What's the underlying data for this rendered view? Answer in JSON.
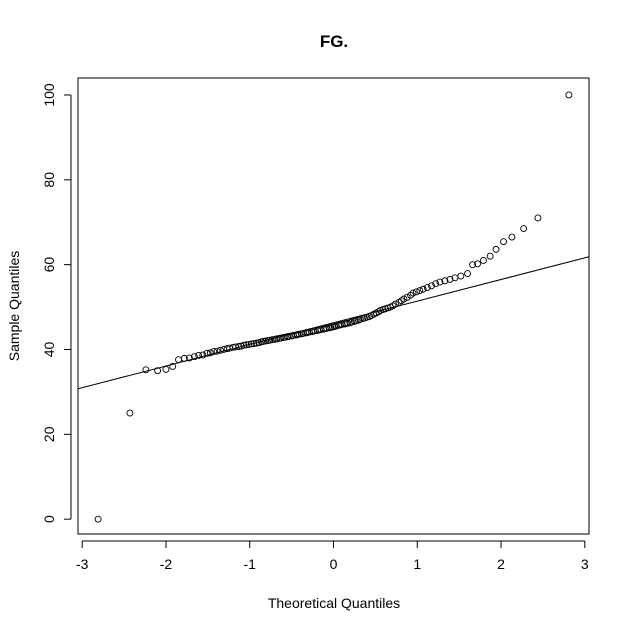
{
  "chart_data": {
    "type": "scatter",
    "title": "FG.",
    "xlabel": "Theoretical Quantiles",
    "ylabel": "Sample Quantiles",
    "xlim": [
      -3.05,
      3.05
    ],
    "ylim": [
      -3.5,
      104
    ],
    "x_ticks": [
      -3,
      -2,
      -1,
      0,
      1,
      2,
      3
    ],
    "y_ticks": [
      0,
      20,
      40,
      60,
      80,
      100
    ],
    "grid": false,
    "reference_line": {
      "slope": 5.1,
      "intercept": 46.3
    },
    "points": [
      [
        -2.81,
        0
      ],
      [
        -2.43,
        25
      ],
      [
        -2.24,
        35.2
      ],
      [
        -2.1,
        35.0
      ],
      [
        -2.0,
        35.3
      ],
      [
        -1.92,
        36.0
      ],
      [
        -1.85,
        37.6
      ],
      [
        -1.78,
        37.9
      ],
      [
        -1.72,
        38.0
      ],
      [
        -1.66,
        38.3
      ],
      [
        -1.61,
        38.6
      ],
      [
        -1.56,
        38.7
      ],
      [
        -1.51,
        39.1
      ],
      [
        -1.47,
        39.2
      ],
      [
        -1.43,
        39.5
      ],
      [
        -1.39,
        39.6
      ],
      [
        -1.35,
        39.8
      ],
      [
        -1.31,
        40.0
      ],
      [
        -1.27,
        40.2
      ],
      [
        -1.24,
        40.3
      ],
      [
        -1.2,
        40.5
      ],
      [
        -1.17,
        40.6
      ],
      [
        -1.13,
        40.7
      ],
      [
        -1.1,
        40.8
      ],
      [
        -1.07,
        41.0
      ],
      [
        -1.04,
        41.1
      ],
      [
        -1.01,
        41.2
      ],
      [
        -0.98,
        41.3
      ],
      [
        -0.95,
        41.4
      ],
      [
        -0.92,
        41.5
      ],
      [
        -0.89,
        41.6
      ],
      [
        -0.86,
        41.8
      ],
      [
        -0.84,
        41.9
      ],
      [
        -0.81,
        42.0
      ],
      [
        -0.78,
        42.1
      ],
      [
        -0.76,
        42.2
      ],
      [
        -0.73,
        42.3
      ],
      [
        -0.7,
        42.4
      ],
      [
        -0.68,
        42.5
      ],
      [
        -0.65,
        42.6
      ],
      [
        -0.63,
        42.7
      ],
      [
        -0.6,
        42.8
      ],
      [
        -0.58,
        42.9
      ],
      [
        -0.55,
        43.0
      ],
      [
        -0.53,
        43.1
      ],
      [
        -0.5,
        43.2
      ],
      [
        -0.48,
        43.3
      ],
      [
        -0.45,
        43.4
      ],
      [
        -0.43,
        43.5
      ],
      [
        -0.41,
        43.6
      ],
      [
        -0.38,
        43.7
      ],
      [
        -0.36,
        43.8
      ],
      [
        -0.33,
        43.9
      ],
      [
        -0.31,
        44.0
      ],
      [
        -0.29,
        44.1
      ],
      [
        -0.26,
        44.2
      ],
      [
        -0.24,
        44.3
      ],
      [
        -0.22,
        44.4
      ],
      [
        -0.19,
        44.5
      ],
      [
        -0.17,
        44.6
      ],
      [
        -0.15,
        44.7
      ],
      [
        -0.12,
        44.8
      ],
      [
        -0.1,
        44.9
      ],
      [
        -0.08,
        45.0
      ],
      [
        -0.05,
        45.1
      ],
      [
        -0.03,
        45.2
      ],
      [
        -0.01,
        45.3
      ],
      [
        0.01,
        45.4
      ],
      [
        0.03,
        45.5
      ],
      [
        0.06,
        45.7
      ],
      [
        0.08,
        45.8
      ],
      [
        0.1,
        45.9
      ],
      [
        0.13,
        46.0
      ],
      [
        0.15,
        46.1
      ],
      [
        0.17,
        46.2
      ],
      [
        0.2,
        46.3
      ],
      [
        0.22,
        46.5
      ],
      [
        0.25,
        46.6
      ],
      [
        0.27,
        46.8
      ],
      [
        0.3,
        46.9
      ],
      [
        0.32,
        47.1
      ],
      [
        0.35,
        47.3
      ],
      [
        0.37,
        47.4
      ],
      [
        0.4,
        47.6
      ],
      [
        0.43,
        47.8
      ],
      [
        0.45,
        48.0
      ],
      [
        0.48,
        48.3
      ],
      [
        0.51,
        48.6
      ],
      [
        0.54,
        48.9
      ],
      [
        0.56,
        49.2
      ],
      [
        0.59,
        49.4
      ],
      [
        0.62,
        49.6
      ],
      [
        0.65,
        49.8
      ],
      [
        0.68,
        50.0
      ],
      [
        0.71,
        50.3
      ],
      [
        0.74,
        50.7
      ],
      [
        0.78,
        51.1
      ],
      [
        0.81,
        51.5
      ],
      [
        0.84,
        51.9
      ],
      [
        0.88,
        52.3
      ],
      [
        0.92,
        52.8
      ],
      [
        0.95,
        53.3
      ],
      [
        0.99,
        53.6
      ],
      [
        1.03,
        53.9
      ],
      [
        1.07,
        54.2
      ],
      [
        1.12,
        54.6
      ],
      [
        1.17,
        55.0
      ],
      [
        1.22,
        55.5
      ],
      [
        1.27,
        55.9
      ],
      [
        1.33,
        56.2
      ],
      [
        1.39,
        56.5
      ],
      [
        1.45,
        56.9
      ],
      [
        1.52,
        57.3
      ],
      [
        1.6,
        57.9
      ],
      [
        1.66,
        60.0
      ],
      [
        1.72,
        60.2
      ],
      [
        1.79,
        61.0
      ],
      [
        1.87,
        62.0
      ],
      [
        1.94,
        63.6
      ],
      [
        2.03,
        65.4
      ],
      [
        2.13,
        66.5
      ],
      [
        2.27,
        68.5
      ],
      [
        2.44,
        71.0
      ],
      [
        2.81,
        100
      ]
    ]
  }
}
